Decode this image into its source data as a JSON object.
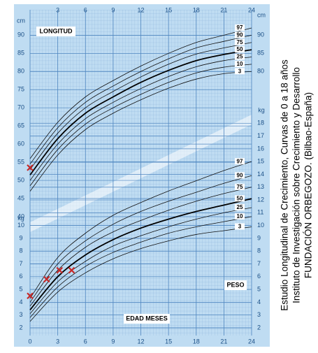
{
  "chart_data": [
    {
      "type": "line",
      "title": "LONGITUD",
      "unit": "cm",
      "x_label": "EDAD MESES",
      "x": [
        0,
        3,
        6,
        9,
        12,
        15,
        18,
        21,
        24
      ],
      "xlim": [
        0,
        24
      ],
      "xticks": [
        0,
        3,
        6,
        9,
        12,
        15,
        18,
        21,
        24
      ],
      "ylim": [
        40,
        97
      ],
      "yticks": [
        40,
        45,
        50,
        55,
        60,
        65,
        70,
        75,
        80,
        85,
        90
      ],
      "right_yticks": [
        80,
        85,
        90
      ],
      "series": [
        {
          "name": "97",
          "color": "#111111",
          "values": [
            56,
            66,
            73,
            77.5,
            81.5,
            85,
            88,
            90,
            92
          ]
        },
        {
          "name": "90",
          "color": "#111111",
          "values": [
            54.5,
            64.5,
            71.5,
            76,
            80,
            83.5,
            86.5,
            88.3,
            90
          ]
        },
        {
          "name": "75",
          "color": "#111111",
          "values": [
            53,
            63,
            70,
            74.5,
            78.5,
            82,
            84.8,
            86.5,
            88
          ]
        },
        {
          "name": "50",
          "color": "#000000",
          "values": [
            51.5,
            61.5,
            68.5,
            73,
            77,
            80.3,
            83,
            84.7,
            86
          ]
        },
        {
          "name": "25",
          "color": "#111111",
          "values": [
            50,
            60,
            67,
            71.5,
            75.3,
            78.6,
            81.3,
            83,
            84
          ]
        },
        {
          "name": "10",
          "color": "#111111",
          "values": [
            48.5,
            58.5,
            65.5,
            70,
            73.7,
            77,
            79.6,
            81.2,
            82
          ]
        },
        {
          "name": "3",
          "color": "#111111",
          "values": [
            47,
            57,
            64,
            68.5,
            72.2,
            75.4,
            77.9,
            79.4,
            80
          ]
        }
      ],
      "points": {
        "x": [
          0
        ],
        "y": [
          53.5
        ],
        "color": "#c62828"
      }
    },
    {
      "type": "line",
      "title": "PESO",
      "unit": "kg",
      "x": [
        0,
        3,
        6,
        9,
        12,
        15,
        18,
        21,
        24
      ],
      "xlim": [
        0,
        24
      ],
      "ylim": [
        2,
        19
      ],
      "yticks": [
        2,
        3,
        4,
        5,
        6,
        7,
        8,
        9,
        10
      ],
      "right_yticks": [
        2,
        3,
        4,
        5,
        6,
        7,
        8,
        9,
        10,
        11,
        12,
        13,
        14,
        15,
        16,
        17,
        18
      ],
      "series": [
        {
          "name": "97",
          "color": "#111111",
          "values": [
            4.3,
            7.5,
            9.4,
            10.8,
            11.8,
            12.7,
            13.5,
            14.3,
            15
          ]
        },
        {
          "name": "90",
          "color": "#111111",
          "values": [
            4.0,
            7.0,
            8.8,
            10.1,
            11.1,
            11.9,
            12.6,
            13.3,
            13.9
          ]
        },
        {
          "name": "75",
          "color": "#111111",
          "values": [
            3.7,
            6.5,
            8.3,
            9.5,
            10.4,
            11.2,
            11.9,
            12.5,
            13
          ]
        },
        {
          "name": "50",
          "color": "#000000",
          "values": [
            3.4,
            6.0,
            7.7,
            8.9,
            9.8,
            10.5,
            11.1,
            11.6,
            12.1
          ]
        },
        {
          "name": "25",
          "color": "#111111",
          "values": [
            3.1,
            5.6,
            7.2,
            8.4,
            9.2,
            9.9,
            10.5,
            11,
            11.4
          ]
        },
        {
          "name": "10",
          "color": "#111111",
          "values": [
            2.8,
            5.2,
            6.8,
            7.9,
            8.7,
            9.4,
            9.9,
            10.3,
            10.7
          ]
        },
        {
          "name": "3",
          "color": "#111111",
          "values": [
            2.5,
            4.8,
            6.3,
            7.4,
            8.2,
            8.8,
            9.3,
            9.6,
            9.9
          ]
        }
      ],
      "points": {
        "x": [
          0,
          1.8,
          3.2,
          4.5
        ],
        "y": [
          4.5,
          5.8,
          6.5,
          6.5
        ],
        "color": "#c62828"
      }
    }
  ],
  "caption": [
    "Estudio Longitudinal de Crecimiento, Curvas de 0 a 18 años",
    "Instituto de Investigación sobre Crecimiento y Desarrollo",
    "FUNDACIÓN ORBEGOZO. (Bilbao-España)"
  ]
}
